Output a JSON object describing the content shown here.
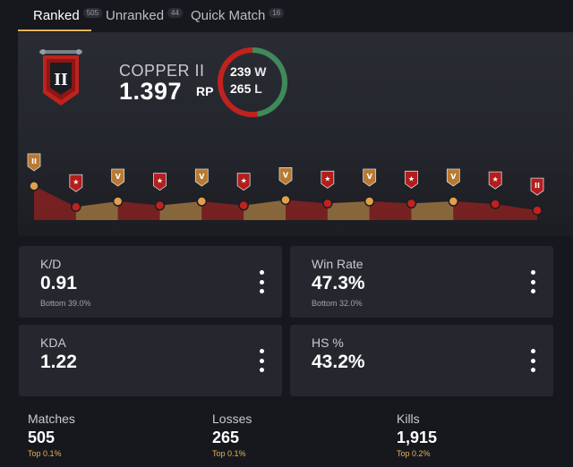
{
  "tabs": [
    {
      "label": "Ranked",
      "count": "505",
      "active": true
    },
    {
      "label": "Unranked",
      "count": "44",
      "active": false
    },
    {
      "label": "Quick Match",
      "count": "16",
      "active": false
    }
  ],
  "rank": {
    "name": "COPPER II",
    "badge_numeral": "II",
    "rp": "1.397",
    "rp_unit": "RP",
    "wins": "239",
    "wins_label": "W",
    "losses": "265",
    "losses_label": "L",
    "win_fraction": 0.474
  },
  "rank_history": {
    "points": [
      {
        "v": 0.7,
        "outcome": "win",
        "badge": "II"
      },
      {
        "v": 0.4,
        "outcome": "loss",
        "badge": "★"
      },
      {
        "v": 0.48,
        "outcome": "win",
        "badge": "V"
      },
      {
        "v": 0.42,
        "outcome": "loss",
        "badge": "★"
      },
      {
        "v": 0.48,
        "outcome": "win",
        "badge": "V"
      },
      {
        "v": 0.42,
        "outcome": "loss",
        "badge": "★"
      },
      {
        "v": 0.5,
        "outcome": "win",
        "badge": "V"
      },
      {
        "v": 0.45,
        "outcome": "loss",
        "badge": "★"
      },
      {
        "v": 0.48,
        "outcome": "win",
        "badge": "V"
      },
      {
        "v": 0.45,
        "outcome": "loss",
        "badge": "★"
      },
      {
        "v": 0.48,
        "outcome": "win",
        "badge": "V"
      },
      {
        "v": 0.44,
        "outcome": "loss",
        "badge": "★"
      },
      {
        "v": 0.35,
        "outcome": "loss",
        "badge": "II"
      }
    ],
    "colors": {
      "win": "#e0a04e",
      "loss": "#c0221f"
    }
  },
  "cards": [
    {
      "label": "K/D",
      "value": "0.91",
      "sub": "Bottom 39.0%"
    },
    {
      "label": "Win Rate",
      "value": "47.3%",
      "sub": "Bottom 32.0%"
    },
    {
      "label": "KDA",
      "value": "1.22",
      "sub": ""
    },
    {
      "label": "HS %",
      "value": "43.2%",
      "sub": ""
    }
  ],
  "bottom_stats": [
    {
      "label": "Matches",
      "value": "505",
      "sub": "Top 0.1%"
    },
    {
      "label": "Losses",
      "value": "265",
      "sub": "Top 0.1%"
    },
    {
      "label": "Kills",
      "value": "1,915",
      "sub": "Top 0.2%"
    }
  ],
  "colors": {
    "accent": "#e8b45a",
    "win_ring": "#3d8a5a",
    "loss_ring": "#c0221f",
    "rank_red": "#c0221f"
  }
}
